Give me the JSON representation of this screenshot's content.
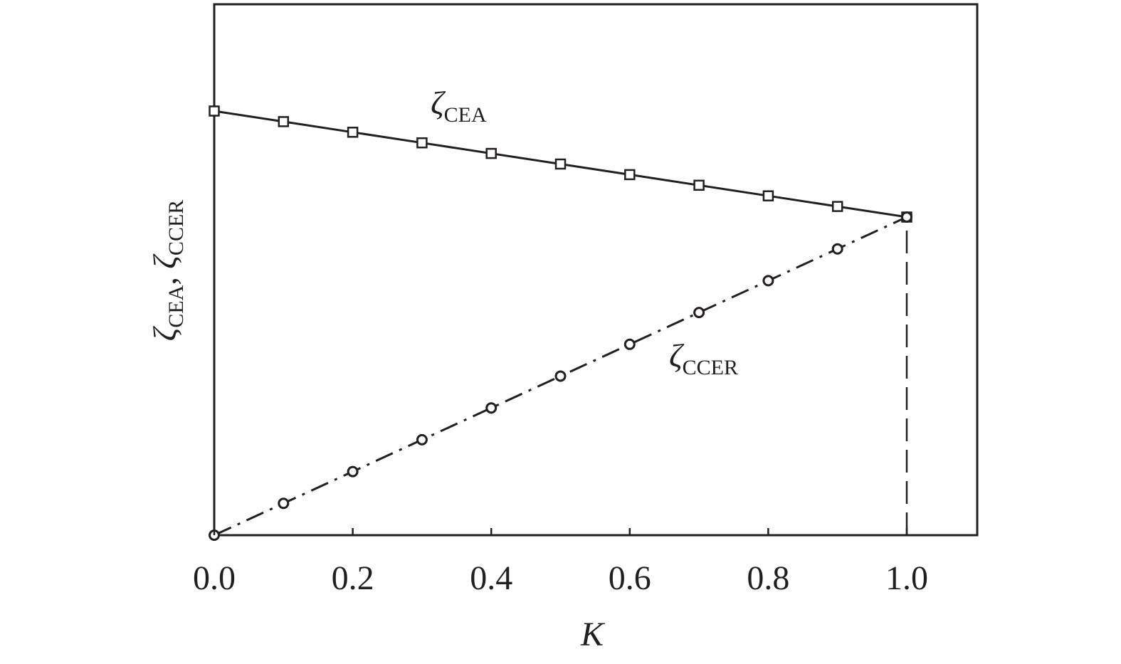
{
  "chart_data": {
    "type": "line",
    "xlabel": "K",
    "ylabel": {
      "parts": [
        {
          "main": "ζ",
          "sub": "CEA"
        },
        {
          "sep": ", "
        },
        {
          "main": "ζ",
          "sub": "CCER"
        }
      ]
    },
    "xlim": [
      0,
      1.1
    ],
    "ylim": [
      0,
      1.25
    ],
    "x_ticks": [
      0.0,
      0.2,
      0.4,
      0.6,
      0.8,
      1.0
    ],
    "x_tick_labels": [
      "0.0",
      "0.2",
      "0.4",
      "0.6",
      "0.8",
      "1.0"
    ],
    "y_ticks_shown": false,
    "grid": false,
    "x": [
      0.0,
      0.1,
      0.2,
      0.3,
      0.4,
      0.5,
      0.6,
      0.7,
      0.8,
      0.9,
      1.0
    ],
    "series": [
      {
        "name": "CEA",
        "label_main": "ζ",
        "label_sub": "CEA",
        "marker": "square",
        "line_style": "solid",
        "values": [
          1.0,
          0.975,
          0.95,
          0.925,
          0.9,
          0.875,
          0.85,
          0.825,
          0.8,
          0.775,
          0.75
        ]
      },
      {
        "name": "CCER",
        "label_main": "ζ",
        "label_sub": "CCER",
        "marker": "circle",
        "line_style": "dash-dot",
        "values": [
          0.0,
          0.075,
          0.15,
          0.225,
          0.3,
          0.375,
          0.45,
          0.525,
          0.6,
          0.675,
          0.75
        ]
      }
    ],
    "annotations": [
      {
        "type": "vertical-dashed-line",
        "x": 1.0,
        "from_y": 0,
        "to_y": 0.75
      }
    ],
    "colors": {
      "line": "#231f20",
      "marker_fill": "#ffffff",
      "background": "#ffffff"
    }
  }
}
